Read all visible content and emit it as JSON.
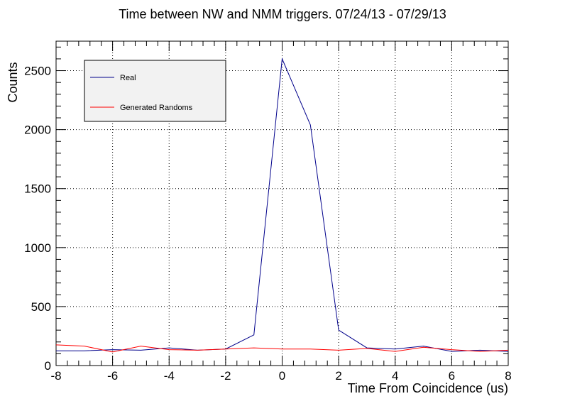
{
  "chart_data": {
    "type": "line",
    "title": "Time between NW and NMM triggers. 07/24/13 - 07/29/13",
    "xlabel": "Time From Coincidence (us)",
    "ylabel": "Counts",
    "xlim": [
      -8,
      8
    ],
    "ylim": [
      0,
      2750
    ],
    "x_ticks": [
      -8,
      -6,
      -4,
      -2,
      0,
      2,
      4,
      6,
      8
    ],
    "y_ticks": [
      0,
      500,
      1000,
      1500,
      2000,
      2500
    ],
    "grid": true,
    "legend_position": "top-left",
    "series": [
      {
        "name": "Real",
        "color": "#00008b",
        "x": [
          -8,
          -7,
          -6,
          -5,
          -4,
          -3,
          -2,
          -1,
          0,
          1,
          2,
          3,
          4,
          5,
          6,
          7,
          8
        ],
        "y": [
          125,
          125,
          135,
          130,
          150,
          130,
          140,
          260,
          2600,
          2040,
          300,
          150,
          140,
          165,
          120,
          130,
          120
        ]
      },
      {
        "name": "Generated Randoms",
        "color": "#ff0000",
        "x": [
          -8,
          -7,
          -6,
          -5,
          -4,
          -3,
          -2,
          -1,
          0,
          1,
          2,
          3,
          4,
          5,
          6,
          7,
          8
        ],
        "y": [
          175,
          165,
          115,
          165,
          135,
          130,
          140,
          150,
          140,
          140,
          130,
          145,
          120,
          155,
          135,
          120,
          130
        ]
      }
    ]
  }
}
